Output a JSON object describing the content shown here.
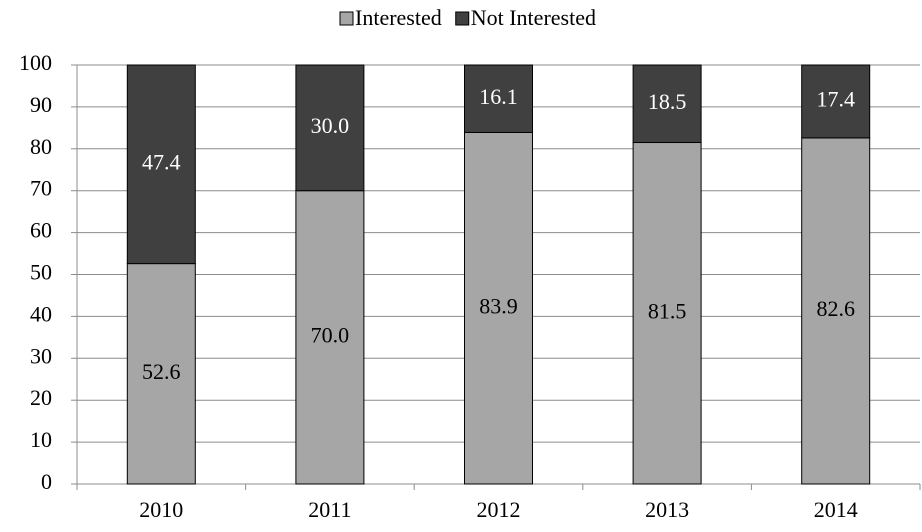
{
  "chart_data": {
    "type": "stacked-bar",
    "categories": [
      "2010",
      "2011",
      "2012",
      "2013",
      "2014"
    ],
    "series": [
      {
        "name": "Interested",
        "color": "#a6a6a6",
        "values": [
          52.6,
          70,
          83.9,
          81.5,
          82.6
        ],
        "value_labels": [
          "52.6",
          "70.0",
          "83.9",
          "81.5",
          "82.6"
        ],
        "label_color": "#000000"
      },
      {
        "name": "Not Interested",
        "color": "#404040",
        "values": [
          47.4,
          30,
          16.1,
          18.5,
          17.4
        ],
        "value_labels": [
          "47.4",
          "30.0",
          "16.1",
          "18.5",
          "17.4"
        ],
        "label_color": "#ffffff"
      }
    ],
    "ylim": [
      0,
      100
    ],
    "yticks": [
      0,
      10,
      20,
      30,
      40,
      50,
      60,
      70,
      80,
      90,
      100
    ],
    "grid": true,
    "legend": "top"
  }
}
